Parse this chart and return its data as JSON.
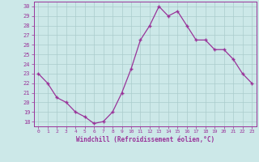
{
  "x": [
    0,
    1,
    2,
    3,
    4,
    5,
    6,
    7,
    8,
    9,
    10,
    11,
    12,
    13,
    14,
    15,
    16,
    17,
    18,
    19,
    20,
    21,
    22,
    23
  ],
  "y": [
    23,
    22,
    20.5,
    20,
    19,
    18.5,
    17.8,
    18,
    19,
    21,
    23.5,
    26.5,
    28,
    30,
    29,
    29.5,
    28,
    26.5,
    26.5,
    25.5,
    25.5,
    24.5,
    23,
    22
  ],
  "line_color": "#993399",
  "marker": "+",
  "background_color": "#cce8e8",
  "grid_color": "#aacccc",
  "xlabel": "Windchill (Refroidissement éolien,°C)",
  "xlabel_color": "#993399",
  "tick_color": "#993399",
  "ylim": [
    17.5,
    30.5
  ],
  "yticks": [
    18,
    19,
    20,
    21,
    22,
    23,
    24,
    25,
    26,
    27,
    28,
    29,
    30
  ],
  "xticks": [
    0,
    1,
    2,
    3,
    4,
    5,
    6,
    7,
    8,
    9,
    10,
    11,
    12,
    13,
    14,
    15,
    16,
    17,
    18,
    19,
    20,
    21,
    22,
    23
  ],
  "xlim": [
    -0.5,
    23.5
  ]
}
